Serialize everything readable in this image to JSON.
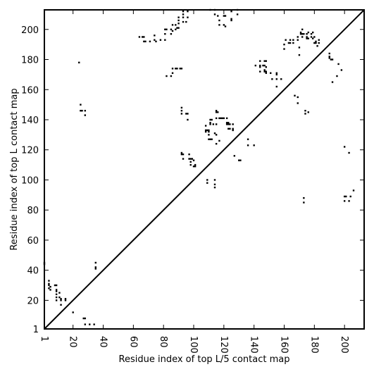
{
  "chart_data": {
    "type": "scatter",
    "xlabel": "Residue index of top L/5 contact map",
    "ylabel": "Residue index of top L contact map",
    "xlim": [
      1,
      213
    ],
    "ylim": [
      1,
      213
    ],
    "x_ticks": [
      1,
      20,
      40,
      60,
      80,
      100,
      120,
      140,
      160,
      180,
      200
    ],
    "y_ticks": [
      1,
      20,
      40,
      60,
      80,
      100,
      120,
      140,
      160,
      180,
      200
    ],
    "diagonal": true,
    "grid": false,
    "marker": "square",
    "marker_color": "#000000",
    "series": [
      {
        "points": [
          [
            1,
            45
          ],
          [
            1,
            44
          ],
          [
            4,
            33
          ],
          [
            4,
            31
          ],
          [
            4,
            30
          ],
          [
            4,
            28
          ],
          [
            5,
            27
          ],
          [
            5,
            29
          ],
          [
            8,
            30
          ],
          [
            9,
            30
          ],
          [
            9,
            27
          ],
          [
            9,
            26
          ],
          [
            9,
            24
          ],
          [
            9,
            22
          ],
          [
            9,
            20
          ],
          [
            11,
            25
          ],
          [
            11,
            22
          ],
          [
            12,
            21
          ],
          [
            12,
            20
          ],
          [
            12,
            17
          ],
          [
            15,
            21
          ],
          [
            15,
            20
          ],
          [
            20,
            12
          ],
          [
            24,
            178
          ],
          [
            25,
            150
          ],
          [
            25,
            146
          ],
          [
            26,
            146
          ],
          [
            28,
            146
          ],
          [
            28,
            143
          ],
          [
            27,
            8
          ],
          [
            28,
            8
          ],
          [
            28,
            4
          ],
          [
            31,
            4
          ],
          [
            34,
            4
          ],
          [
            35,
            45
          ],
          [
            35,
            42
          ],
          [
            35,
            41
          ],
          [
            64,
            195
          ],
          [
            66,
            195
          ],
          [
            67,
            195
          ],
          [
            67,
            192
          ],
          [
            68,
            192
          ],
          [
            71,
            192
          ],
          [
            74,
            196
          ],
          [
            74,
            193
          ],
          [
            75,
            192
          ],
          [
            78,
            193
          ],
          [
            81,
            200
          ],
          [
            81,
            197
          ],
          [
            81,
            193
          ],
          [
            82,
            200
          ],
          [
            82,
            169
          ],
          [
            85,
            197
          ],
          [
            85,
            200
          ],
          [
            85,
            169
          ],
          [
            86,
            203
          ],
          [
            86,
            199
          ],
          [
            86,
            171
          ],
          [
            86,
            174
          ],
          [
            88,
            203
          ],
          [
            88,
            200
          ],
          [
            88,
            174
          ],
          [
            89,
            201
          ],
          [
            89,
            174
          ],
          [
            90,
            208
          ],
          [
            90,
            206
          ],
          [
            90,
            204
          ],
          [
            90,
            201
          ],
          [
            91,
            174
          ],
          [
            92,
            174
          ],
          [
            92,
            148
          ],
          [
            92,
            146
          ],
          [
            92,
            144
          ],
          [
            92,
            118
          ],
          [
            92,
            117
          ],
          [
            93,
            117
          ],
          [
            93,
            114
          ],
          [
            93,
            205
          ],
          [
            93,
            208
          ],
          [
            93,
            210
          ],
          [
            93,
            212
          ],
          [
            95,
            144
          ],
          [
            95,
            205
          ],
          [
            96,
            144
          ],
          [
            96,
            140
          ],
          [
            96,
            208
          ],
          [
            96,
            212
          ],
          [
            97,
            117
          ],
          [
            97,
            114
          ],
          [
            98,
            114
          ],
          [
            98,
            112
          ],
          [
            98,
            110
          ],
          [
            99,
            114
          ],
          [
            100,
            109
          ],
          [
            100,
            113
          ],
          [
            101,
            110
          ],
          [
            101,
            109
          ],
          [
            108,
            136
          ],
          [
            108,
            132
          ],
          [
            108,
            133
          ],
          [
            109,
            100
          ],
          [
            109,
            98
          ],
          [
            109,
            133
          ],
          [
            110,
            130
          ],
          [
            110,
            127
          ],
          [
            110,
            132
          ],
          [
            110,
            133
          ],
          [
            111,
            137
          ],
          [
            111,
            138
          ],
          [
            111,
            140
          ],
          [
            111,
            127
          ],
          [
            111,
            213
          ],
          [
            112,
            140
          ],
          [
            112,
            127
          ],
          [
            113,
            137
          ],
          [
            114,
            131
          ],
          [
            114,
            97
          ],
          [
            114,
            95
          ],
          [
            114,
            100
          ],
          [
            114,
            210
          ],
          [
            114,
            213
          ],
          [
            115,
            146
          ],
          [
            115,
            145
          ],
          [
            115,
            141
          ],
          [
            115,
            137
          ],
          [
            115,
            130
          ],
          [
            115,
            124
          ],
          [
            116,
            145
          ],
          [
            116,
            209
          ],
          [
            117,
            141
          ],
          [
            117,
            126
          ],
          [
            117,
            206
          ],
          [
            117,
            203
          ],
          [
            118,
            141
          ],
          [
            119,
            141
          ],
          [
            120,
            141
          ],
          [
            120,
            203
          ],
          [
            120,
            209
          ],
          [
            121,
            209
          ],
          [
            121,
            202
          ],
          [
            122,
            141
          ],
          [
            122,
            138
          ],
          [
            122,
            137
          ],
          [
            123,
            138
          ],
          [
            123,
            137
          ],
          [
            123,
            134
          ],
          [
            124,
            134
          ],
          [
            124,
            137
          ],
          [
            125,
            206
          ],
          [
            125,
            207
          ],
          [
            125,
            212
          ],
          [
            126,
            137
          ],
          [
            126,
            134
          ],
          [
            126,
            133
          ],
          [
            127,
            116
          ],
          [
            129,
            213
          ],
          [
            129,
            210
          ],
          [
            130,
            113
          ],
          [
            131,
            113
          ],
          [
            136,
            127
          ],
          [
            136,
            123
          ],
          [
            140,
            123
          ],
          [
            141,
            176
          ],
          [
            144,
            172
          ],
          [
            144,
            176
          ],
          [
            144,
            179
          ],
          [
            144,
            175
          ],
          [
            146,
            176
          ],
          [
            147,
            179
          ],
          [
            147,
            176
          ],
          [
            147,
            173
          ],
          [
            147,
            172
          ],
          [
            148,
            179
          ],
          [
            148,
            175
          ],
          [
            148,
            172
          ],
          [
            148,
            171
          ],
          [
            151,
            171
          ],
          [
            152,
            167
          ],
          [
            155,
            171
          ],
          [
            155,
            170
          ],
          [
            155,
            167
          ],
          [
            155,
            162
          ],
          [
            158,
            167
          ],
          [
            160,
            190
          ],
          [
            160,
            187
          ],
          [
            161,
            193
          ],
          [
            163,
            191
          ],
          [
            164,
            191
          ],
          [
            164,
            193
          ],
          [
            166,
            191
          ],
          [
            166,
            193
          ],
          [
            167,
            156
          ],
          [
            169,
            193
          ],
          [
            169,
            195
          ],
          [
            169,
            155
          ],
          [
            169,
            151
          ],
          [
            170,
            183
          ],
          [
            170,
            188
          ],
          [
            171,
            197
          ],
          [
            171,
            198
          ],
          [
            172,
            200
          ],
          [
            172,
            197
          ],
          [
            172,
            195
          ],
          [
            173,
            197
          ],
          [
            173,
            88
          ],
          [
            173,
            85
          ],
          [
            174,
            146
          ],
          [
            174,
            144
          ],
          [
            175,
            197
          ],
          [
            175,
            195
          ],
          [
            175,
            194
          ],
          [
            176,
            145
          ],
          [
            176,
            198
          ],
          [
            176,
            194
          ],
          [
            178,
            197
          ],
          [
            178,
            195
          ],
          [
            179,
            198
          ],
          [
            179,
            194
          ],
          [
            180,
            191
          ],
          [
            180,
            195
          ],
          [
            181,
            191
          ],
          [
            181,
            192
          ],
          [
            182,
            189
          ],
          [
            183,
            191
          ],
          [
            183,
            193
          ],
          [
            190,
            184
          ],
          [
            190,
            181
          ],
          [
            190,
            182
          ],
          [
            191,
            180
          ],
          [
            192,
            180
          ],
          [
            192,
            165
          ],
          [
            195,
            169
          ],
          [
            196,
            177
          ],
          [
            198,
            173
          ],
          [
            200,
            122
          ],
          [
            200,
            89
          ],
          [
            200,
            86
          ],
          [
            201,
            89
          ],
          [
            203,
            86
          ],
          [
            203,
            118
          ],
          [
            204,
            89
          ],
          [
            206,
            93
          ]
        ]
      }
    ]
  }
}
